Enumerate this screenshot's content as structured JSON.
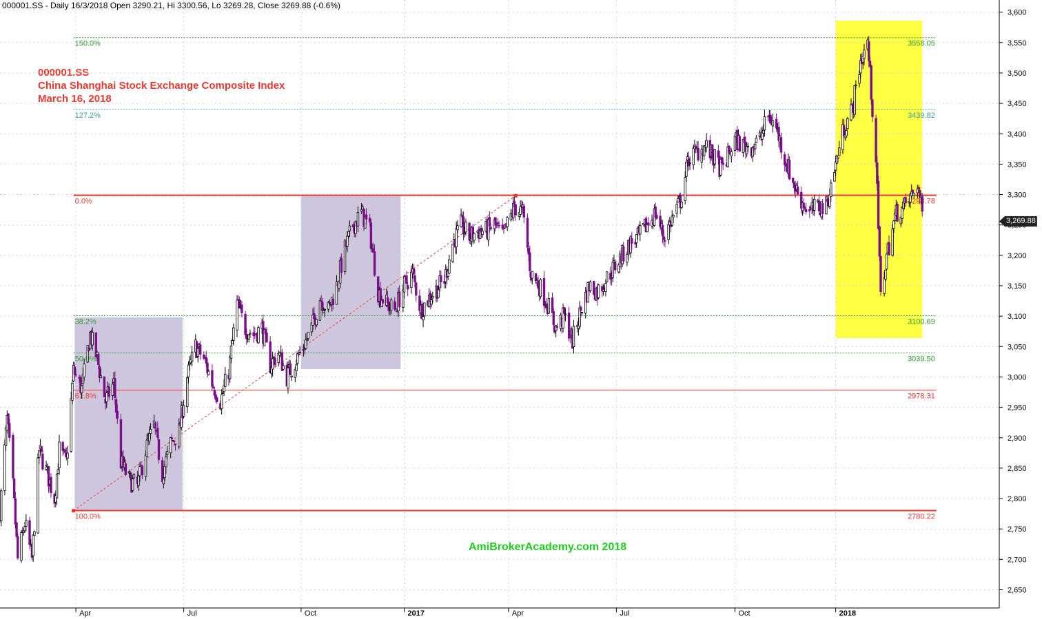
{
  "header": "000001.SS - Daily 16/3/2018 Open 3290.21, Hi 3300.56, Lo 3269.28, Close 3269.88 (-0.6%)",
  "title_lines": [
    "000001.SS",
    "China Shanghai Stock Exchange Composite Index",
    "March 16, 2018"
  ],
  "watermark": "AmiBrokerAcademy.com   2018",
  "last_price_label": "3,269.88",
  "colors": {
    "up_candle": "#000000",
    "down_candle": "#7b0f8a",
    "fib_red": "#e8392f",
    "fib_green": "#2e9e2e",
    "fib_teal": "#3a9aa0",
    "box_purple": "#cdc6dc",
    "box_yellow": "#ffff44",
    "watermark": "#22cc22"
  },
  "chart_data": {
    "type": "candlestick",
    "y_axis": {
      "min": 2620,
      "max": 3620,
      "side": "right",
      "ticks": [
        2650,
        2700,
        2750,
        2800,
        2850,
        2900,
        2950,
        3000,
        3050,
        3100,
        3150,
        3200,
        3250,
        3300,
        3350,
        3400,
        3450,
        3500,
        3550,
        3600
      ]
    },
    "x_axis": {
      "start": "2016-01-28",
      "end": "2018-05-20",
      "labels": [
        {
          "date": "2016-04-01",
          "text": "Apr",
          "bold": false
        },
        {
          "date": "2016-07-01",
          "text": "Jul",
          "bold": false
        },
        {
          "date": "2016-10-08",
          "text": "Oct",
          "bold": false
        },
        {
          "date": "2017-01-03",
          "text": "2017",
          "bold": true
        },
        {
          "date": "2017-04-01",
          "text": "Apr",
          "bold": false
        },
        {
          "date": "2017-07-01",
          "text": "Jul",
          "bold": false
        },
        {
          "date": "2017-10-09",
          "text": "Oct",
          "bold": false
        },
        {
          "date": "2018-01-02",
          "text": "2018",
          "bold": true
        }
      ]
    },
    "fib_levels": [
      {
        "pct": "150.0%",
        "value": "3558.05",
        "level": 3558.05,
        "style": "dotted",
        "color": "green"
      },
      {
        "pct": "127.2%",
        "value": "3439.82",
        "level": 3439.82,
        "style": "dotted",
        "color": "teal"
      },
      {
        "pct": "0.0%",
        "value": "3298.78",
        "level": 3298.78,
        "style": "solid",
        "color": "red"
      },
      {
        "pct": "38.2%",
        "value": "3100.69",
        "level": 3100.69,
        "style": "dotted",
        "color": "green"
      },
      {
        "pct": "50.0%",
        "value": "3039.50",
        "level": 3039.5,
        "style": "dotted",
        "color": "green"
      },
      {
        "pct": "61.8%",
        "value": "2978.31",
        "level": 2978.31,
        "style": "thin",
        "color": "red"
      },
      {
        "pct": "100.0%",
        "value": "2780.22",
        "level": 2780.22,
        "style": "solid",
        "color": "red"
      }
    ],
    "trendline": {
      "from": {
        "date": "2016-03-30",
        "price": 2780
      },
      "to": {
        "date": "2017-04-07",
        "price": 3298
      },
      "style": "dashed"
    },
    "boxes": [
      {
        "from": "2016-03-31",
        "to": "2016-06-30",
        "high": 3098,
        "low": 2780,
        "color": "purple"
      },
      {
        "from": "2016-10-08",
        "to": "2016-12-31",
        "high": 3298,
        "low": 3013,
        "color": "purple"
      },
      {
        "from": "2018-01-02",
        "to": "2018-03-16",
        "high": 3586,
        "low": 3064,
        "color": "yellow"
      }
    ],
    "series": [
      {
        "kind": "close_path",
        "points": [
          [
            "2016-01-28",
            2780
          ],
          [
            "2016-02-03",
            2930
          ],
          [
            "2016-02-08",
            2820
          ],
          [
            "2016-02-12",
            2700
          ],
          [
            "2016-02-18",
            2760
          ],
          [
            "2016-02-24",
            2700
          ],
          [
            "2016-03-01",
            2880
          ],
          [
            "2016-03-08",
            2840
          ],
          [
            "2016-03-14",
            2800
          ],
          [
            "2016-03-18",
            2880
          ],
          [
            "2016-03-24",
            2860
          ],
          [
            "2016-03-30",
            3010
          ],
          [
            "2016-04-06",
            2980
          ],
          [
            "2016-04-13",
            3070
          ],
          [
            "2016-04-19",
            3030
          ],
          [
            "2016-04-26",
            2960
          ],
          [
            "2016-05-03",
            2990
          ],
          [
            "2016-05-09",
            2860
          ],
          [
            "2016-05-16",
            2830
          ],
          [
            "2016-05-23",
            2820
          ],
          [
            "2016-05-30",
            2880
          ],
          [
            "2016-06-06",
            2920
          ],
          [
            "2016-06-13",
            2840
          ],
          [
            "2016-06-20",
            2890
          ],
          [
            "2016-06-27",
            2910
          ],
          [
            "2016-07-04",
            3000
          ],
          [
            "2016-07-11",
            3050
          ],
          [
            "2016-07-18",
            3030
          ],
          [
            "2016-07-25",
            2990
          ],
          [
            "2016-08-01",
            2960
          ],
          [
            "2016-08-08",
            3010
          ],
          [
            "2016-08-15",
            3120
          ],
          [
            "2016-08-22",
            3080
          ],
          [
            "2016-08-29",
            3070
          ],
          [
            "2016-09-05",
            3080
          ],
          [
            "2016-09-12",
            3020
          ],
          [
            "2016-09-19",
            3040
          ],
          [
            "2016-09-26",
            3000
          ],
          [
            "2016-10-10",
            3050
          ],
          [
            "2016-10-17",
            3080
          ],
          [
            "2016-10-24",
            3130
          ],
          [
            "2016-10-31",
            3110
          ],
          [
            "2016-11-07",
            3150
          ],
          [
            "2016-11-14",
            3210
          ],
          [
            "2016-11-21",
            3250
          ],
          [
            "2016-11-28",
            3270
          ],
          [
            "2016-12-05",
            3240
          ],
          [
            "2016-12-12",
            3140
          ],
          [
            "2016-12-19",
            3120
          ],
          [
            "2016-12-26",
            3110
          ],
          [
            "2017-01-03",
            3150
          ],
          [
            "2017-01-10",
            3170
          ],
          [
            "2017-01-17",
            3110
          ],
          [
            "2017-01-24",
            3130
          ],
          [
            "2017-02-06",
            3160
          ],
          [
            "2017-02-13",
            3220
          ],
          [
            "2017-02-20",
            3250
          ],
          [
            "2017-02-27",
            3230
          ],
          [
            "2017-03-06",
            3240
          ],
          [
            "2017-03-13",
            3240
          ],
          [
            "2017-03-20",
            3250
          ],
          [
            "2017-03-27",
            3230
          ],
          [
            "2017-04-06",
            3280
          ],
          [
            "2017-04-13",
            3270
          ],
          [
            "2017-04-20",
            3170
          ],
          [
            "2017-04-27",
            3150
          ],
          [
            "2017-05-04",
            3120
          ],
          [
            "2017-05-11",
            3080
          ],
          [
            "2017-05-18",
            3100
          ],
          [
            "2017-05-25",
            3060
          ],
          [
            "2017-06-01",
            3110
          ],
          [
            "2017-06-08",
            3150
          ],
          [
            "2017-06-15",
            3140
          ],
          [
            "2017-06-22",
            3160
          ],
          [
            "2017-06-29",
            3180
          ],
          [
            "2017-07-06",
            3200
          ],
          [
            "2017-07-13",
            3220
          ],
          [
            "2017-07-20",
            3230
          ],
          [
            "2017-07-27",
            3250
          ],
          [
            "2017-08-03",
            3270
          ],
          [
            "2017-08-10",
            3230
          ],
          [
            "2017-08-17",
            3260
          ],
          [
            "2017-08-24",
            3290
          ],
          [
            "2017-08-31",
            3360
          ],
          [
            "2017-09-07",
            3370
          ],
          [
            "2017-09-14",
            3380
          ],
          [
            "2017-09-21",
            3360
          ],
          [
            "2017-09-28",
            3340
          ],
          [
            "2017-10-09",
            3390
          ],
          [
            "2017-10-16",
            3380
          ],
          [
            "2017-10-23",
            3380
          ],
          [
            "2017-10-30",
            3390
          ],
          [
            "2017-11-06",
            3430
          ],
          [
            "2017-11-13",
            3410
          ],
          [
            "2017-11-20",
            3360
          ],
          [
            "2017-11-27",
            3320
          ],
          [
            "2017-12-04",
            3290
          ],
          [
            "2017-12-11",
            3270
          ],
          [
            "2017-12-18",
            3280
          ],
          [
            "2017-12-25",
            3280
          ],
          [
            "2018-01-02",
            3350
          ],
          [
            "2018-01-09",
            3410
          ],
          [
            "2018-01-16",
            3440
          ],
          [
            "2018-01-23",
            3520
          ],
          [
            "2018-01-29",
            3550
          ],
          [
            "2018-02-05",
            3360
          ],
          [
            "2018-02-09",
            3130
          ],
          [
            "2018-02-14",
            3200
          ],
          [
            "2018-02-22",
            3270
          ],
          [
            "2018-03-01",
            3280
          ],
          [
            "2018-03-08",
            3300
          ],
          [
            "2018-03-12",
            3320
          ],
          [
            "2018-03-16",
            3269.88
          ]
        ]
      }
    ]
  }
}
